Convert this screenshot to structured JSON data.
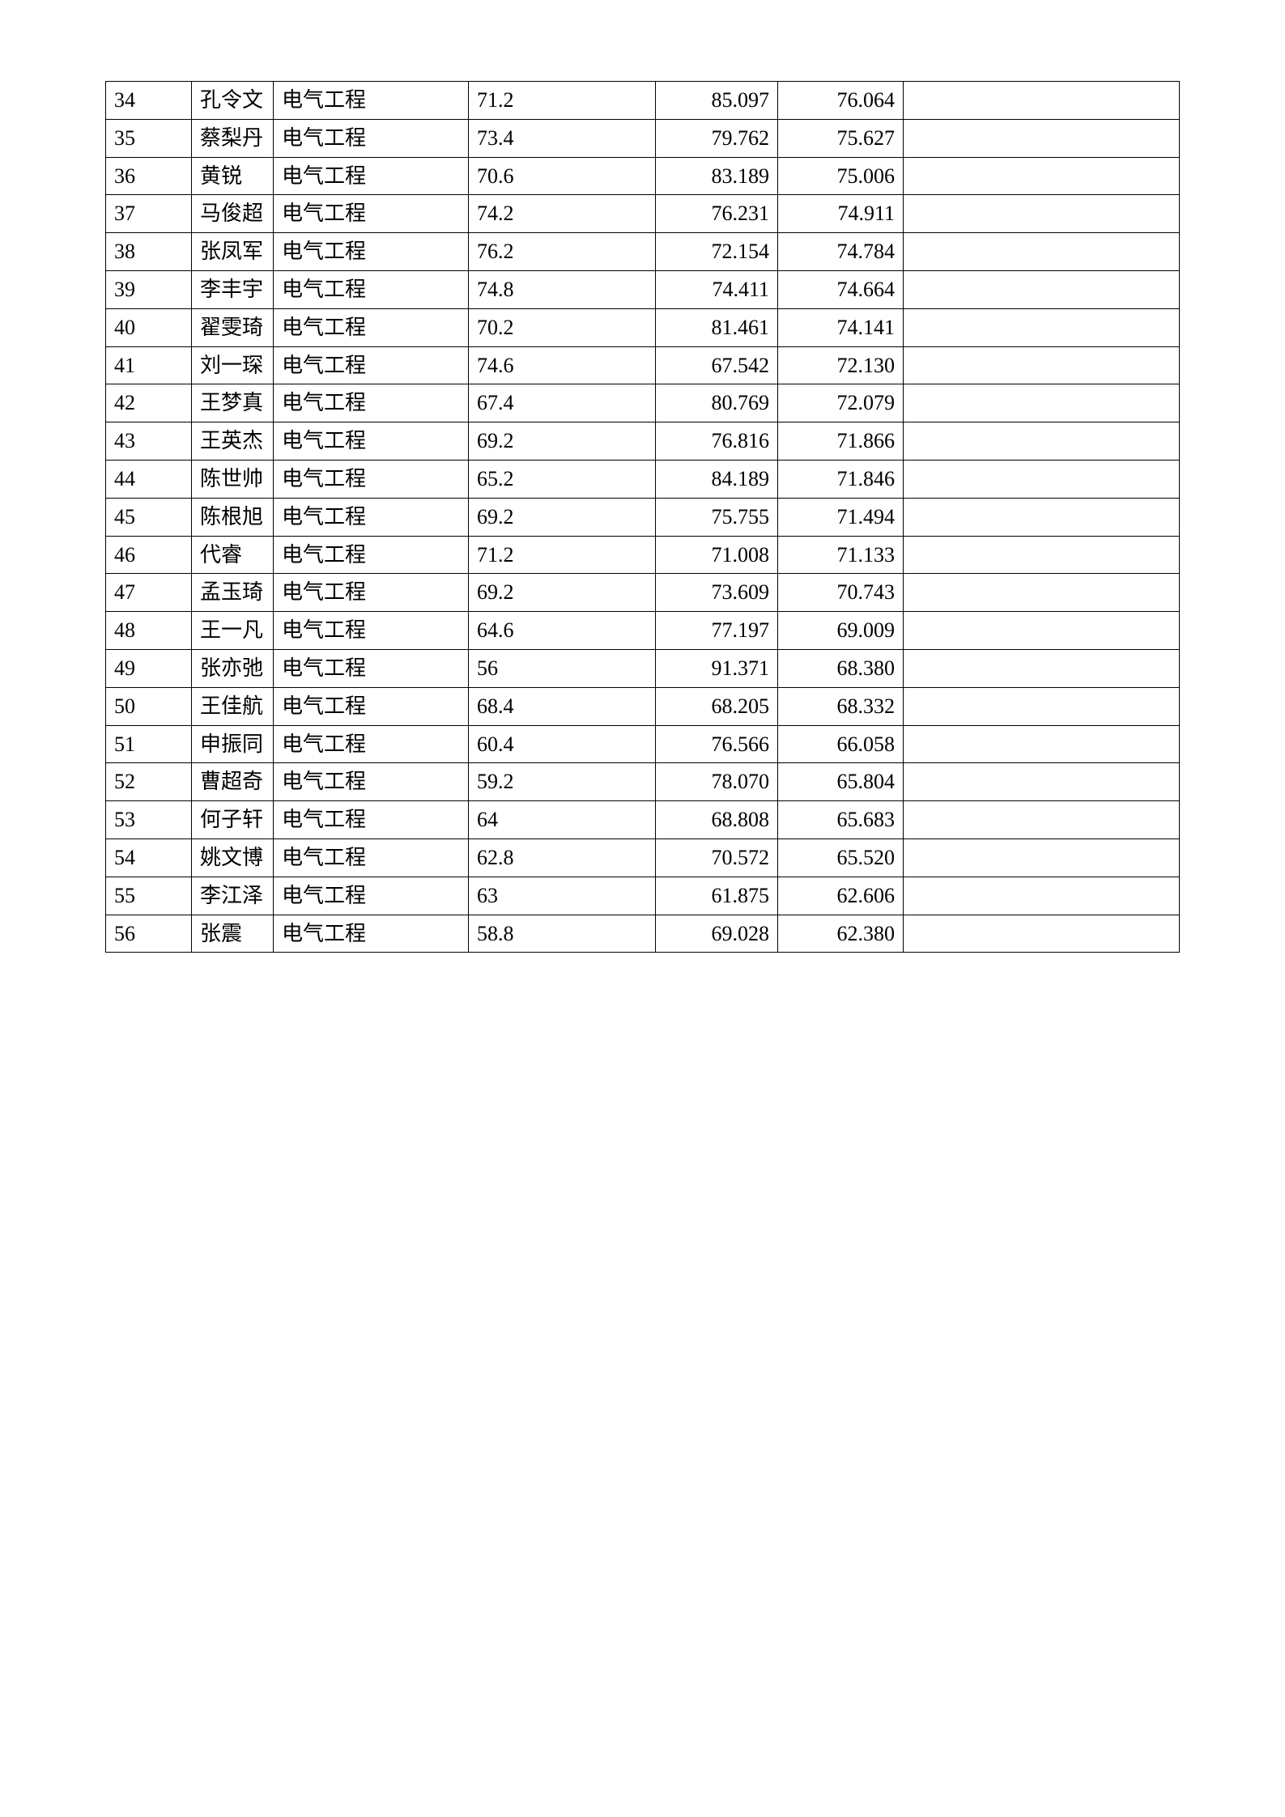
{
  "table": {
    "columns": [
      {
        "key": "idx",
        "class": "col-idx"
      },
      {
        "key": "name",
        "class": "col-name"
      },
      {
        "key": "major",
        "class": "col-major"
      },
      {
        "key": "s1",
        "class": "col-s1"
      },
      {
        "key": "s2",
        "class": "col-s2"
      },
      {
        "key": "s3",
        "class": "col-s3"
      },
      {
        "key": "last",
        "class": "col-last"
      }
    ],
    "rows": [
      {
        "idx": "34",
        "name": "孔令文",
        "major": "电气工程",
        "s1": "71.2",
        "s2": "85.097",
        "s3": "76.064",
        "last": ""
      },
      {
        "idx": "35",
        "name": "蔡梨丹",
        "major": "电气工程",
        "s1": "73.4",
        "s2": "79.762",
        "s3": "75.627",
        "last": ""
      },
      {
        "idx": "36",
        "name": "黄锐",
        "major": "电气工程",
        "s1": "70.6",
        "s2": "83.189",
        "s3": "75.006",
        "last": ""
      },
      {
        "idx": "37",
        "name": "马俊超",
        "major": "电气工程",
        "s1": "74.2",
        "s2": "76.231",
        "s3": "74.911",
        "last": ""
      },
      {
        "idx": "38",
        "name": "张凤军",
        "major": "电气工程",
        "s1": "76.2",
        "s2": "72.154",
        "s3": "74.784",
        "last": ""
      },
      {
        "idx": "39",
        "name": "李丰宇",
        "major": "电气工程",
        "s1": "74.8",
        "s2": "74.411",
        "s3": "74.664",
        "last": ""
      },
      {
        "idx": "40",
        "name": "翟雯琦",
        "major": "电气工程",
        "s1": "70.2",
        "s2": "81.461",
        "s3": "74.141",
        "last": ""
      },
      {
        "idx": "41",
        "name": "刘一琛",
        "major": "电气工程",
        "s1": "74.6",
        "s2": "67.542",
        "s3": "72.130",
        "last": ""
      },
      {
        "idx": "42",
        "name": "王梦真",
        "major": "电气工程",
        "s1": "67.4",
        "s2": "80.769",
        "s3": "72.079",
        "last": ""
      },
      {
        "idx": "43",
        "name": "王英杰",
        "major": "电气工程",
        "s1": "69.2",
        "s2": "76.816",
        "s3": "71.866",
        "last": ""
      },
      {
        "idx": "44",
        "name": "陈世帅",
        "major": "电气工程",
        "s1": "65.2",
        "s2": "84.189",
        "s3": "71.846",
        "last": ""
      },
      {
        "idx": "45",
        "name": "陈根旭",
        "major": "电气工程",
        "s1": "69.2",
        "s2": "75.755",
        "s3": "71.494",
        "last": ""
      },
      {
        "idx": "46",
        "name": "代睿",
        "major": "电气工程",
        "s1": "71.2",
        "s2": "71.008",
        "s3": "71.133",
        "last": ""
      },
      {
        "idx": "47",
        "name": "孟玉琦",
        "major": "电气工程",
        "s1": "69.2",
        "s2": "73.609",
        "s3": "70.743",
        "last": ""
      },
      {
        "idx": "48",
        "name": "王一凡",
        "major": "电气工程",
        "s1": "64.6",
        "s2": "77.197",
        "s3": "69.009",
        "last": ""
      },
      {
        "idx": "49",
        "name": "张亦弛",
        "major": "电气工程",
        "s1": "56",
        "s2": "91.371",
        "s3": "68.380",
        "last": ""
      },
      {
        "idx": "50",
        "name": "王佳航",
        "major": "电气工程",
        "s1": "68.4",
        "s2": "68.205",
        "s3": "68.332",
        "last": ""
      },
      {
        "idx": "51",
        "name": "申振同",
        "major": "电气工程",
        "s1": "60.4",
        "s2": "76.566",
        "s3": "66.058",
        "last": ""
      },
      {
        "idx": "52",
        "name": "曹超奇",
        "major": "电气工程",
        "s1": "59.2",
        "s2": "78.070",
        "s3": "65.804",
        "last": ""
      },
      {
        "idx": "53",
        "name": "何子轩",
        "major": "电气工程",
        "s1": "64",
        "s2": "68.808",
        "s3": "65.683",
        "last": ""
      },
      {
        "idx": "54",
        "name": "姚文博",
        "major": "电气工程",
        "s1": "62.8",
        "s2": "70.572",
        "s3": "65.520",
        "last": ""
      },
      {
        "idx": "55",
        "name": "李江泽",
        "major": "电气工程",
        "s1": "63",
        "s2": "61.875",
        "s3": "62.606",
        "last": ""
      },
      {
        "idx": "56",
        "name": "张震",
        "major": "电气工程",
        "s1": "58.8",
        "s2": "69.028",
        "s3": "62.380",
        "last": ""
      }
    ],
    "border_color": "#000000",
    "background_color": "#ffffff",
    "font_size": 26,
    "font_family": "SimSun"
  }
}
